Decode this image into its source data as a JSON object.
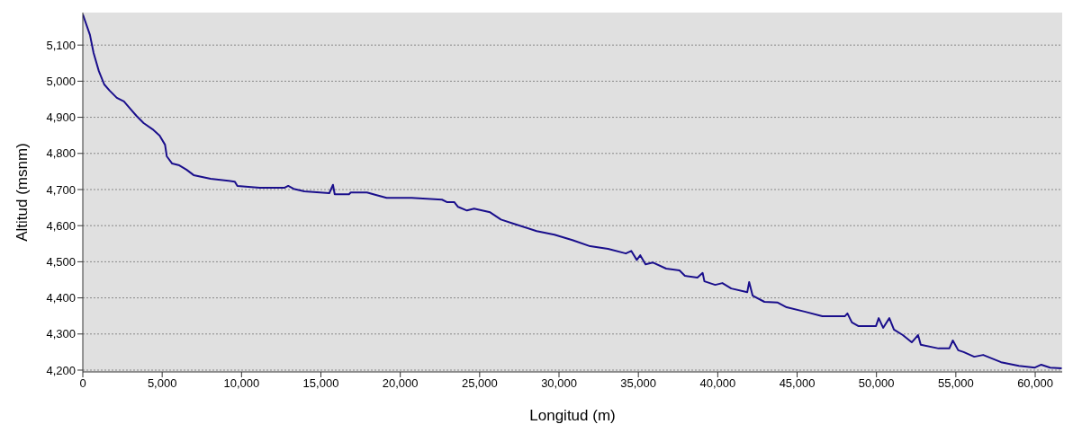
{
  "chart_data": {
    "type": "line",
    "xlabel": "Longitud (m)",
    "ylabel": "Altitud (msnm)",
    "x": [
      0,
      450,
      680,
      1010,
      1350,
      1690,
      2140,
      2590,
      2980,
      3380,
      3830,
      4390,
      4840,
      5180,
      5290,
      5630,
      6080,
      6530,
      6980,
      8050,
      9570,
      9740,
      11140,
      12720,
      12940,
      13280,
      13960,
      15530,
      15760,
      15870,
      16770,
      16880,
      17900,
      18460,
      19140,
      20710,
      22630,
      22960,
      23410,
      23640,
      24200,
      24650,
      25660,
      26340,
      27180,
      28590,
      29710,
      30840,
      31960,
      33090,
      34210,
      34550,
      34900,
      35120,
      35450,
      35900,
      36750,
      37590,
      37930,
      38720,
      39050,
      39160,
      39840,
      40290,
      40850,
      41860,
      41980,
      42200,
      42940,
      43780,
      44340,
      45470,
      46590,
      48000,
      48170,
      48450,
      48850,
      49970,
      50140,
      50420,
      50810,
      51100,
      51660,
      52220,
      52620,
      52790,
      53910,
      54590,
      54810,
      55150,
      55490,
      56160,
      56720,
      57850,
      58970,
      59980,
      60380,
      60940,
      61670
    ],
    "series": [
      {
        "color": "#1a0f8c",
        "values": [
          5185,
          5128,
          5078,
          5028,
          4991,
          4974,
          4954,
          4944,
          4924,
          4904,
          4884,
          4867,
          4849,
          4824,
          4792,
          4772,
          4767,
          4755,
          4740,
          4730,
          4722,
          4710,
          4705,
          4705,
          4710,
          4702,
          4695,
          4690,
          4713,
          4687,
          4687,
          4692,
          4692,
          4685,
          4677,
          4677,
          4672,
          4665,
          4665,
          4652,
          4642,
          4647,
          4637,
          4617,
          4605,
          4585,
          4575,
          4560,
          4543,
          4536,
          4523,
          4530,
          4505,
          4518,
          4493,
          4498,
          4481,
          4476,
          4461,
          4456,
          4469,
          4446,
          4436,
          4441,
          4426,
          4416,
          4444,
          4406,
          4389,
          4387,
          4374,
          4362,
          4349,
          4349,
          4357,
          4332,
          4322,
          4322,
          4344,
          4317,
          4344,
          4312,
          4297,
          4277,
          4297,
          4270,
          4260,
          4260,
          4282,
          4255,
          4250,
          4237,
          4242,
          4222,
          4212,
          4207,
          4215,
          4207,
          4205
        ]
      }
    ],
    "xlim": [
      0,
      61700
    ],
    "xticks": [
      0,
      {
        "value": 5000,
        "label": "5,000"
      },
      {
        "value": 10000,
        "label": "10,000"
      },
      {
        "value": 15000,
        "label": "15,000"
      },
      {
        "value": 20000,
        "label": "20,000"
      },
      {
        "value": 25000,
        "label": "25,000"
      },
      {
        "value": 30000,
        "label": "30,000"
      },
      {
        "value": 35000,
        "label": "35,000"
      },
      {
        "value": 40000,
        "label": "40,000"
      },
      {
        "value": 45000,
        "label": "45,000"
      },
      {
        "value": 50000,
        "label": "50,000"
      },
      {
        "value": 55000,
        "label": "55,000"
      },
      {
        "value": 60000,
        "label": "60,000"
      }
    ],
    "ylim": [
      4195,
      5190
    ],
    "yticks": [
      {
        "value": 4200,
        "label": "4,200"
      },
      {
        "value": 4300,
        "label": "4,300"
      },
      {
        "value": 4400,
        "label": "4,400"
      },
      {
        "value": 4500,
        "label": "4,500"
      },
      {
        "value": 4600,
        "label": "4,600"
      },
      {
        "value": 4700,
        "label": "4,700"
      },
      {
        "value": 4800,
        "label": "4,800"
      },
      {
        "value": 4900,
        "label": "4,900"
      },
      {
        "value": 5000,
        "label": "5,000"
      },
      {
        "value": 5100,
        "label": "5,100"
      }
    ],
    "grid": "y",
    "marker": "none",
    "line_style": "solid"
  }
}
